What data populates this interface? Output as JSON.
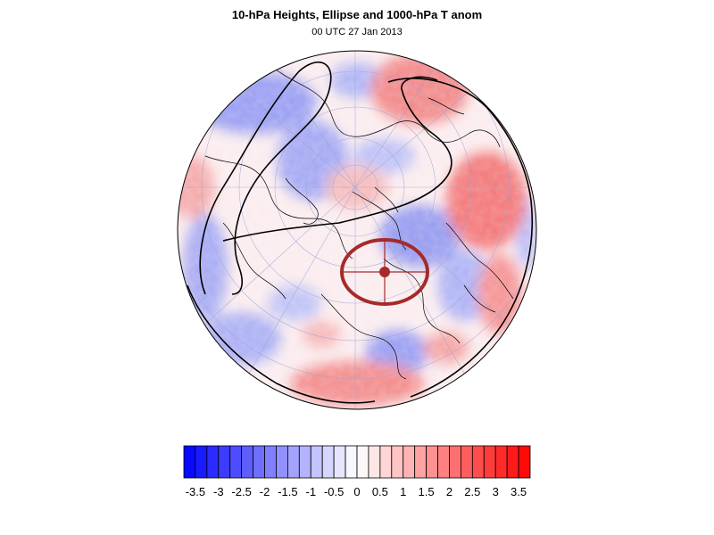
{
  "title": "10-hPa Heights, Ellipse and 1000-hPa T anom",
  "subtitle": "00 UTC 27 Jan 2013",
  "colorbar": {
    "min": -3.75,
    "max": 3.75,
    "step": 0.25,
    "low_color": "#0000ff",
    "mid_color": "#ffffff",
    "high_color": "#ff0000",
    "tick_labels": [
      "-3.5",
      "-3",
      "-2.5",
      "-2",
      "-1.5",
      "-1",
      "-0.5",
      "0",
      "0.5",
      "1",
      "1.5",
      "2",
      "2.5",
      "3",
      "3.5"
    ]
  },
  "colors": {
    "ellipse": "#a52a2a",
    "height_contour": "#000000",
    "coastline": "#000000",
    "graticule": "#9aa4d6"
  }
}
